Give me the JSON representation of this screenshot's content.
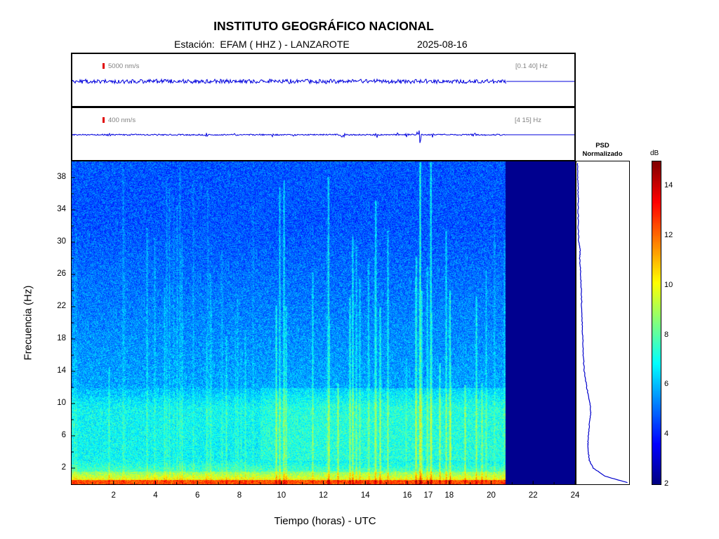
{
  "header": {
    "title": "INSTITUTO GEOGRÁFICO NACIONAL",
    "station": "Estación:  EFAM ( HHZ ) - LANZAROTE",
    "date": "2025-08-16"
  },
  "traces": [
    {
      "scale_label": "5000 nm/s",
      "band_label": "[0.1 40] Hz",
      "color": "#0000dd"
    },
    {
      "scale_label": "400 nm/s",
      "band_label": "[4 15] Hz",
      "color": "#0000dd"
    }
  ],
  "psd": {
    "title_line1": "PSD",
    "title_line2": "Normalizado"
  },
  "colorbar": {
    "unit": "dB",
    "ticks": [
      "2",
      "4",
      "6",
      "8",
      "10",
      "12",
      "14"
    ],
    "range": [
      2,
      15
    ],
    "colormap": "jet"
  },
  "chart_data": {
    "type": "heatmap",
    "xlabel": "Tiempo (horas) - UTC",
    "ylabel": "Frecuencia  (Hz)",
    "xlim": [
      0,
      24
    ],
    "ylim": [
      0,
      40
    ],
    "xticks": [
      "2",
      "4",
      "6",
      "8",
      "10",
      "12",
      "14",
      "16",
      "17",
      "18",
      "20",
      "22",
      "24"
    ],
    "xtick_values": [
      2,
      4,
      6,
      8,
      10,
      12,
      14,
      16,
      17,
      18,
      20,
      22,
      24
    ],
    "yticks": [
      "2",
      "6",
      "10",
      "14",
      "18",
      "22",
      "26",
      "30",
      "34",
      "38"
    ],
    "ytick_values": [
      2,
      6,
      10,
      14,
      18,
      22,
      26,
      30,
      34,
      38
    ],
    "data_end_hour": 20.7,
    "nodata_color": "#00008f",
    "notable_event_hour": 16.6,
    "psd_profile": {
      "freq_hz": [
        0.2,
        1,
        2,
        3,
        4,
        5,
        6,
        8,
        9,
        10,
        12,
        14,
        16,
        18,
        20,
        22,
        24,
        26,
        28,
        29,
        30,
        32,
        34,
        36,
        38,
        40
      ],
      "normalized": [
        1.0,
        0.55,
        0.32,
        0.24,
        0.22,
        0.21,
        0.22,
        0.25,
        0.27,
        0.25,
        0.19,
        0.14,
        0.12,
        0.11,
        0.1,
        0.09,
        0.08,
        0.07,
        0.05,
        0.06,
        0.03,
        0.02,
        0.02,
        0.02,
        0.01,
        0.01
      ]
    }
  }
}
